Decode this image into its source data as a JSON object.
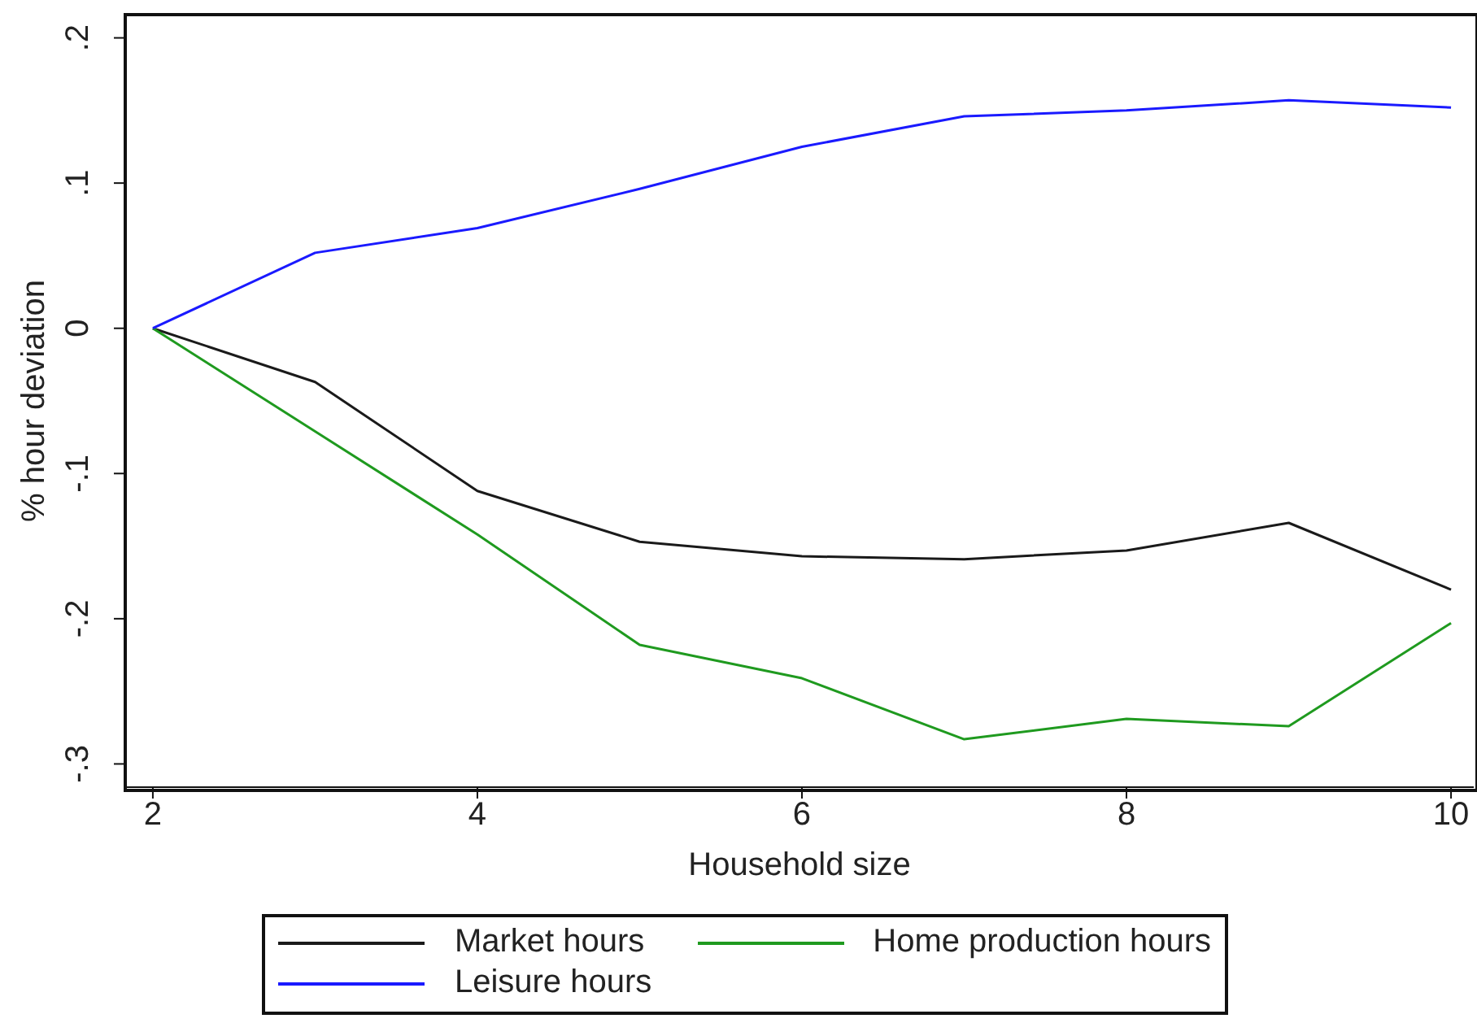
{
  "chart_data": {
    "type": "line",
    "xlabel": "Household size",
    "ylabel": "% hour deviation",
    "x": [
      2,
      3,
      4,
      5,
      6,
      7,
      8,
      9,
      10
    ],
    "series": [
      {
        "name": "Market hours",
        "color": "#1a1a1a",
        "values": [
          0,
          -0.037,
          -0.112,
          -0.147,
          -0.157,
          -0.159,
          -0.153,
          -0.134,
          -0.18
        ]
      },
      {
        "name": "Home production hours",
        "color": "#1f9a1f",
        "values": [
          0,
          -0.071,
          -0.142,
          -0.218,
          -0.241,
          -0.283,
          -0.269,
          -0.274,
          -0.203
        ]
      },
      {
        "name": "Leisure hours",
        "color": "#1a1aff",
        "values": [
          0,
          0.052,
          0.069,
          0.096,
          0.125,
          0.146,
          0.15,
          0.157,
          0.152
        ]
      }
    ],
    "xlim": [
      1.83,
      10.14
    ],
    "xticks": [
      2,
      4,
      6,
      8,
      10
    ],
    "ylim": [
      -0.316,
      0.216
    ],
    "yticks": [
      {
        "value": -0.3,
        "label": "-.3"
      },
      {
        "value": -0.2,
        "label": "-.2"
      },
      {
        "value": -0.1,
        "label": "-.1"
      },
      {
        "value": 0,
        "label": "0"
      },
      {
        "value": 0.1,
        "label": ".1"
      },
      {
        "value": 0.2,
        "label": ".2"
      }
    ],
    "grid": false,
    "legend": "bottom",
    "marker": "none",
    "line_style": "solid"
  }
}
